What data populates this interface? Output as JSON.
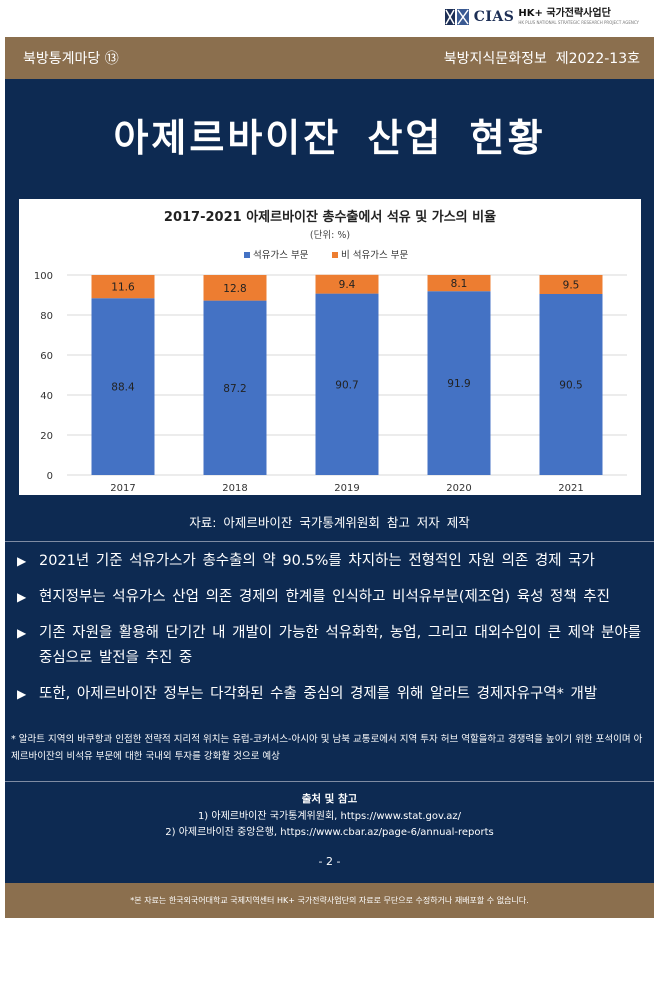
{
  "logo": {
    "text": "CIAS",
    "hk": "HK+ 국가전략사업단",
    "sub": "HK PLUS NATIONAL STRATEGIC RESEARCH PROJECT AGENCY"
  },
  "header": {
    "left": "북방통계마당 ⑬",
    "right": "북방지식문화정보  제2022-13호"
  },
  "main": {
    "title": "아제르바이잔 산업 현황",
    "chart_caption": "자료: 아제르바이잔 국가통계위원회 참고 저자 제작"
  },
  "chart_data": {
    "type": "bar",
    "stacked": true,
    "title": "2017-2021 아제르바이잔 총수출에서 석유 및 가스의 비율",
    "subtitle": "(단위: %)",
    "categories": [
      "2017",
      "2018",
      "2019",
      "2020",
      "2021"
    ],
    "series": [
      {
        "name": "석유가스 부문",
        "values": [
          88.4,
          87.2,
          90.7,
          91.9,
          90.5
        ],
        "color": "#4472c4"
      },
      {
        "name": "비 석유가스 부문",
        "values": [
          11.6,
          12.8,
          9.4,
          8.1,
          9.5
        ],
        "color": "#ed7d31"
      }
    ],
    "ylim": [
      0,
      100
    ],
    "yticks": [
      0,
      20,
      40,
      60,
      80,
      100
    ],
    "grid": true,
    "legend": "top-center"
  },
  "bullets": [
    {
      "arrow": "▶",
      "text": "2021년 기준 석유가스가 총수출의 약 90.5%를 차지하는 전형적인 자원 의존 경제 국가"
    },
    {
      "arrow": "▶",
      "text": "현지정부는 석유가스 산업 의존 경제의 한계를 인식하고 비석유부분(제조업) 육성 정책 추진"
    },
    {
      "arrow": "▶",
      "text": "기존 자원을 활용해 단기간 내 개발이 가능한 석유화학, 농업, 그리고 대외수입이 큰 제약 분야를 중심으로 발전을 추진 중"
    },
    {
      "arrow": "▶",
      "text": "또한, 아제르바이잔 정부는 다각화된 수출 중심의 경제를 위해 알라트 경제자유구역* 개발"
    }
  ],
  "footnote": "* 알라트 지역의 바쿠항과 인접한 전략적 지리적 위치는 유럽-코카서스-아시아 및 남북 교통로에서 지역 투자 허브 역할을하고 경쟁력을 높이기 위한 포석이며 아제르바이잔의 비석유 부문에 대한 국내외 투자를 강화할 것으로 예상",
  "sources": {
    "heading": "출처 및 참고",
    "items": [
      "1) 아제르바이잔 국가통계위원회, https://www.stat.gov.az/",
      "2) 아제르바이잔 중앙은행, https://www.cbar.az/page-6/annual-reports"
    ]
  },
  "page_number": "- 2 -",
  "footer": "*본 자료는 한국외국어대학교 국제지역센터 HK+ 국가전략사업단의 자료로 무단으로 수정하거나 재배포할 수 없습니다."
}
